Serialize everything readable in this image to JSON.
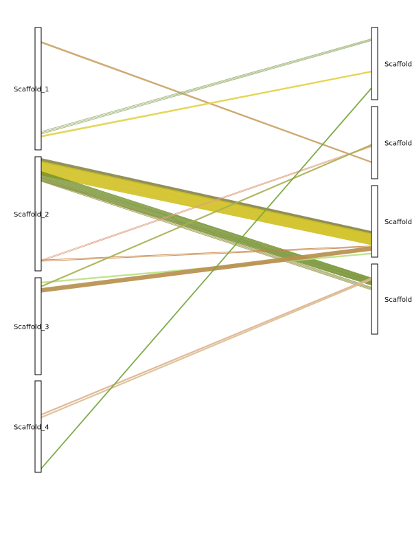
{
  "chart_data": {
    "type": "synteny",
    "left_track": {
      "scaffolds": [
        {
          "id": "L1",
          "label": "Scaffold_1"
        },
        {
          "id": "L2",
          "label": "Scaffold_2"
        },
        {
          "id": "L3",
          "label": "Scaffold_3"
        },
        {
          "id": "L4",
          "label": "Scaffold_4"
        }
      ]
    },
    "right_track": {
      "scaffolds": [
        {
          "id": "R1",
          "label": "Scaffold"
        },
        {
          "id": "R2",
          "label": "Scaffold"
        },
        {
          "id": "R3",
          "label": "Scaffold"
        },
        {
          "id": "R4",
          "label": "Scaffold"
        }
      ]
    },
    "links": [
      {
        "from": "L1",
        "from_pos": 0.12,
        "to": "R2",
        "to_pos": 0.77,
        "color": "#c8a060",
        "count": 3,
        "spread": 0.01
      },
      {
        "from": "L1",
        "from_pos": 0.86,
        "to": "R1",
        "to_pos": 0.17,
        "color": "#9ab070",
        "count": 3,
        "spread": 0.02
      },
      {
        "from": "L1",
        "from_pos": 0.89,
        "to": "R1",
        "to_pos": 0.61,
        "color": "#e0d040",
        "count": 3,
        "spread": 0.01
      },
      {
        "from": "L2",
        "from_pos": 0.03,
        "to": "R3",
        "to_pos": 0.66,
        "color": "#8a8a50",
        "count": 9,
        "spread": 0.03
      },
      {
        "from": "L2",
        "from_pos": 0.1,
        "to": "R3",
        "to_pos": 0.75,
        "color": "#d0c020",
        "count": 26,
        "spread": 0.12
      },
      {
        "from": "L2",
        "from_pos": 0.17,
        "to": "R4",
        "to_pos": 0.25,
        "color": "#6a8a20",
        "count": 12,
        "spread": 0.08
      },
      {
        "from": "L2",
        "from_pos": 0.2,
        "to": "R4",
        "to_pos": 0.35,
        "color": "#9a9a50",
        "count": 4,
        "spread": 0.03
      },
      {
        "from": "L2",
        "from_pos": 0.91,
        "to": "R2",
        "to_pos": 0.55,
        "color": "#e0a080",
        "count": 2,
        "spread": 0.01
      },
      {
        "from": "L2",
        "from_pos": 0.91,
        "to": "R3",
        "to_pos": 0.85,
        "color": "#c88040",
        "count": 2,
        "spread": 0.01
      },
      {
        "from": "L3",
        "from_pos": 0.05,
        "to": "R3",
        "to_pos": 0.95,
        "color": "#b8e080",
        "count": 3,
        "spread": 0.01
      },
      {
        "from": "L3",
        "from_pos": 0.09,
        "to": "R2",
        "to_pos": 0.53,
        "color": "#a8b050",
        "count": 3,
        "spread": 0.01
      },
      {
        "from": "L3",
        "from_pos": 0.13,
        "to": "R3",
        "to_pos": 0.88,
        "color": "#b89050",
        "count": 10,
        "spread": 0.04
      },
      {
        "from": "L4",
        "from_pos": 0.37,
        "to": "R4",
        "to_pos": 0.2,
        "color": "#e0b090",
        "count": 3,
        "spread": 0.01
      },
      {
        "from": "L4",
        "from_pos": 0.4,
        "to": "R4",
        "to_pos": 0.22,
        "color": "#d8c090",
        "count": 3,
        "spread": 0.01
      },
      {
        "from": "L4",
        "from_pos": 0.96,
        "to": "R1",
        "to_pos": 0.84,
        "color": "#78a840",
        "count": 3,
        "spread": 0.01
      }
    ]
  }
}
